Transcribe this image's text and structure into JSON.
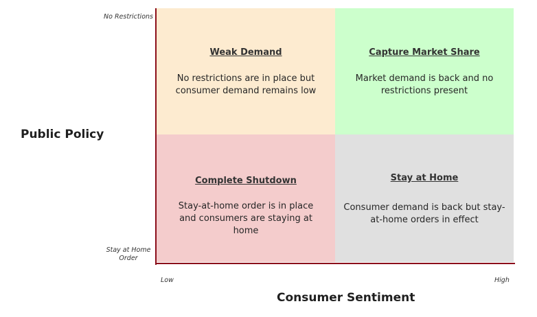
{
  "axes": {
    "y_title": "Public Policy",
    "x_title": "Consumer Sentiment",
    "y_top": "No Restrictions",
    "y_bottom": "Stay at Home Order",
    "x_low": "Low",
    "x_high": "High",
    "axis_color": "#8b0e1a"
  },
  "quadrants": {
    "top_left": {
      "title": "Weak Demand",
      "body": "No restrictions are in place but consumer demand remains low",
      "color": "#fdebd0"
    },
    "top_right": {
      "title": "Capture Market Share",
      "body": "Market demand is back and no restrictions present",
      "color": "#ccffcc"
    },
    "bottom_left": {
      "title": "Complete Shutdown",
      "body": "Stay-at-home order is in place and consumers are staying at home",
      "color": "#f4cccc"
    },
    "bottom_right": {
      "title": "Stay at Home",
      "body": "Consumer demand is back but stay-at-home orders in effect",
      "color": "#e0e0e0"
    }
  }
}
